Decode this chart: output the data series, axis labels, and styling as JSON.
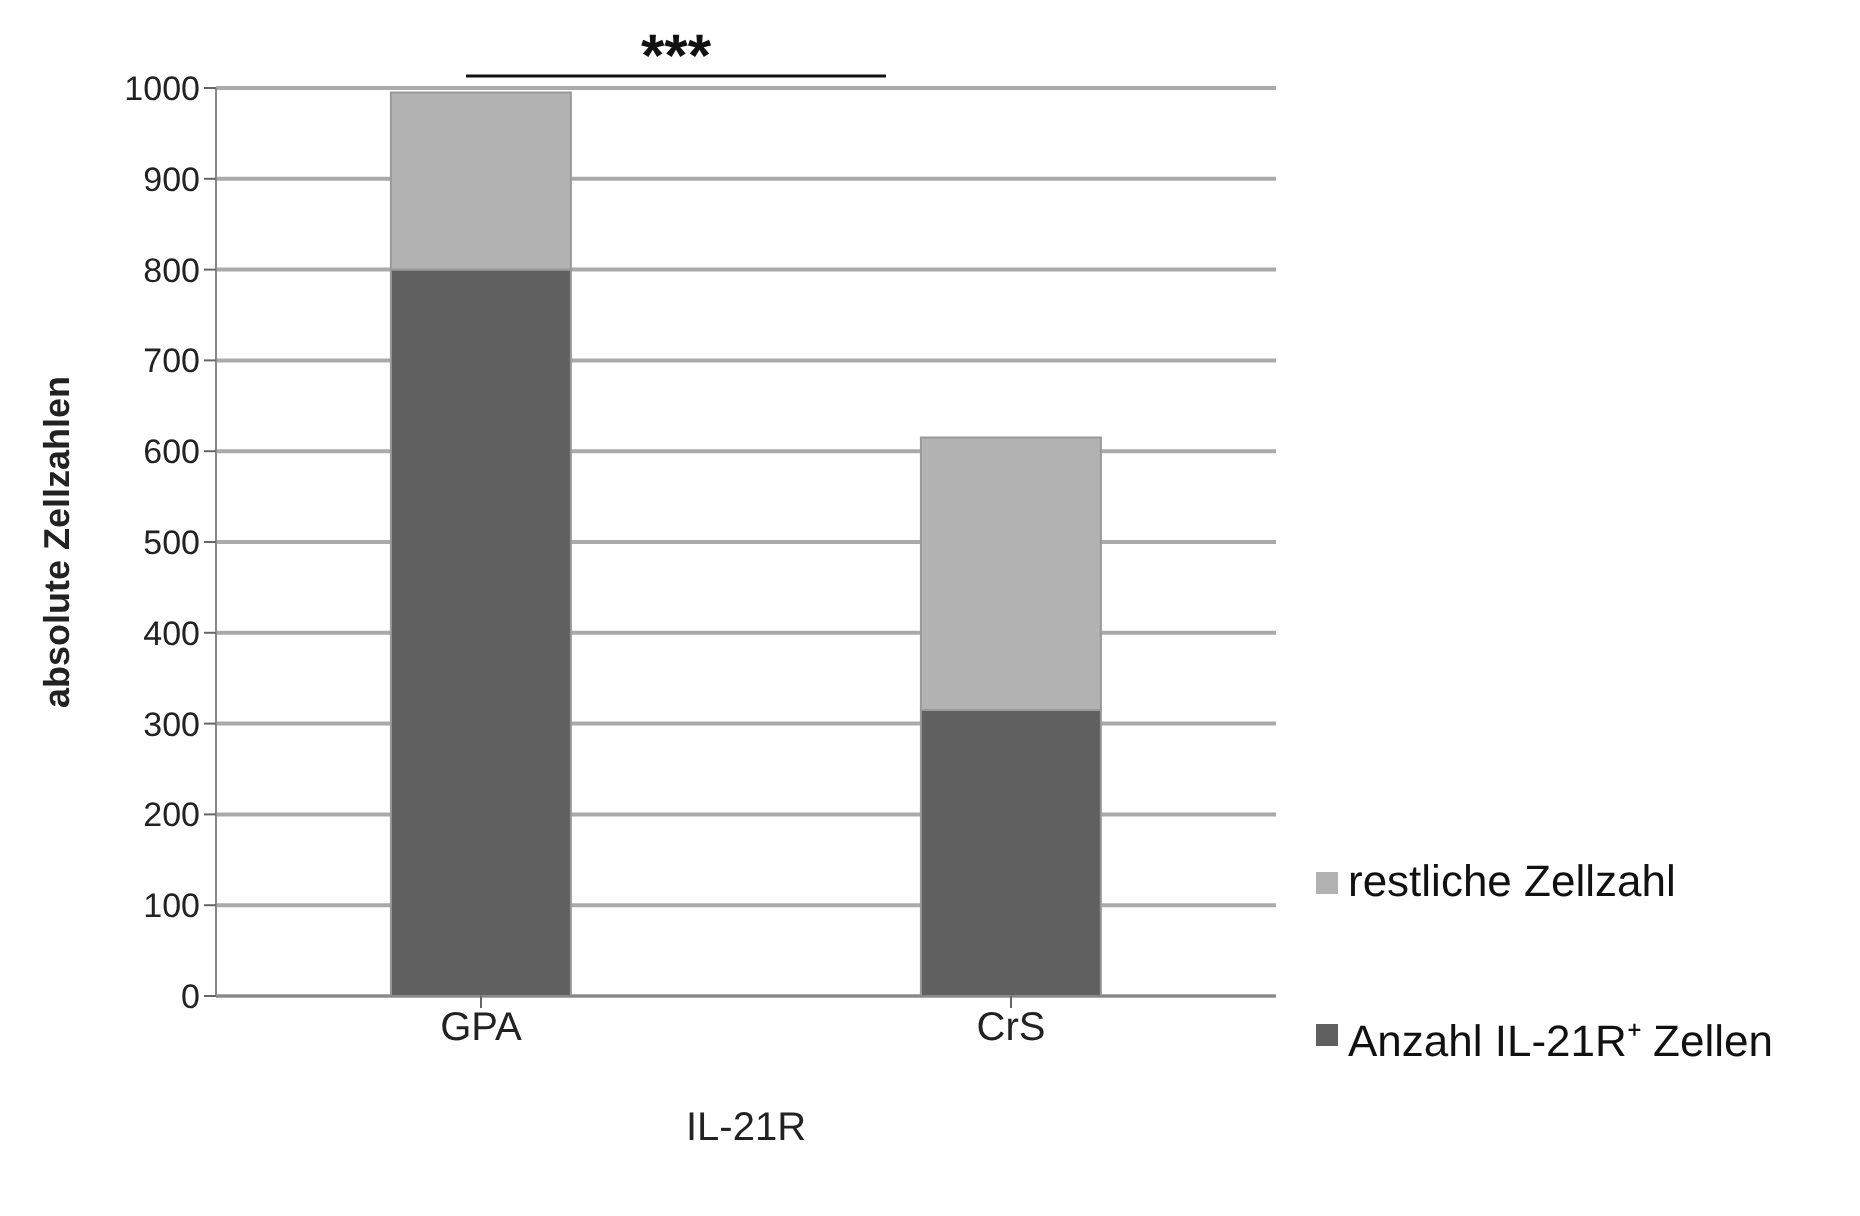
{
  "chart_data": {
    "type": "bar",
    "stacked": true,
    "categories": [
      "GPA",
      "CrS"
    ],
    "xlabel": "IL-21R",
    "ylabel": "absolute Zellzahlen",
    "series": [
      {
        "name": "Anzahl IL-21R⁺ Zellen",
        "color": "#606060",
        "values": [
          800,
          315
        ]
      },
      {
        "name": "restliche Zellzahl",
        "color": "#b2b2b2",
        "values": [
          195,
          300
        ]
      }
    ],
    "ylim": [
      0,
      1000
    ],
    "yticks": [
      0,
      100,
      200,
      300,
      400,
      500,
      600,
      700,
      800,
      900,
      1000
    ],
    "grid": "y",
    "legend": "right",
    "annotations": [
      "***"
    ]
  }
}
